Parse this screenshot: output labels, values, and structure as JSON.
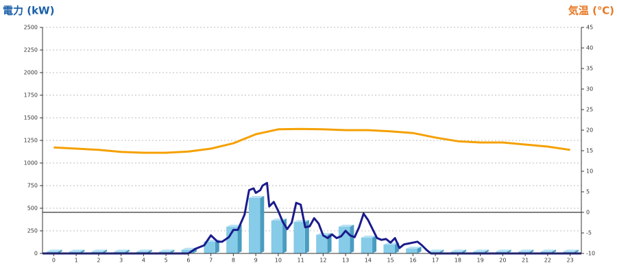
{
  "chart_data": {
    "type": "combo",
    "y_title": "電力 (kW)",
    "y2_title": "気温 (℃)",
    "categories": [
      0,
      1,
      2,
      3,
      4,
      5,
      6,
      7,
      8,
      9,
      10,
      11,
      12,
      13,
      14,
      15,
      16,
      17,
      18,
      19,
      20,
      21,
      22,
      23
    ],
    "xlim": [
      -0.5,
      23.5
    ],
    "ylim": [
      0,
      2500
    ],
    "yticks": [
      0,
      250,
      500,
      750,
      1000,
      1250,
      1500,
      1750,
      2000,
      2250,
      2500
    ],
    "y2lim": [
      -10,
      45
    ],
    "y2ticks": [
      -10,
      -5,
      0,
      5,
      10,
      15,
      20,
      25,
      30,
      35,
      40,
      45
    ],
    "grid": true,
    "y2_zero_line": true,
    "series": [
      {
        "type": "bar",
        "color": "#86cbe8",
        "values": [
          20,
          20,
          20,
          20,
          20,
          20,
          40,
          130,
          295,
          614,
          364,
          348,
          205,
          295,
          174,
          98,
          53,
          20,
          20,
          20,
          20,
          20,
          20,
          20
        ]
      },
      {
        "type": "line",
        "color": "#1a1a8c",
        "x": [
          -0.5,
          0,
          1,
          2,
          3,
          4,
          5,
          6,
          6.3,
          6.7,
          7,
          7.3,
          7.5,
          7.8,
          8,
          8.2,
          8.5,
          8.7,
          8.9,
          9,
          9.2,
          9.3,
          9.5,
          9.6,
          9.8,
          10,
          10.2,
          10.4,
          10.6,
          10.8,
          11,
          11.2,
          11.4,
          11.6,
          11.8,
          12,
          12.2,
          12.4,
          12.6,
          12.8,
          13,
          13.2,
          13.4,
          13.6,
          13.8,
          14,
          14.2,
          14.4,
          14.6,
          14.8,
          15,
          15.2,
          15.4,
          15.6,
          15.8,
          16,
          16.2,
          16.4,
          16.6,
          16.8,
          17,
          18,
          19,
          20,
          21,
          22,
          23,
          23.5
        ],
        "values": [
          0,
          0,
          0,
          0,
          0,
          0,
          0,
          0,
          50,
          90,
          200,
          130,
          130,
          180,
          260,
          260,
          430,
          700,
          720,
          670,
          700,
          750,
          780,
          520,
          570,
          470,
          350,
          270,
          340,
          560,
          540,
          290,
          300,
          390,
          330,
          200,
          170,
          210,
          170,
          190,
          250,
          200,
          180,
          290,
          440,
          370,
          270,
          170,
          150,
          160,
          120,
          170,
          60,
          100,
          110,
          120,
          130,
          90,
          40,
          0,
          0,
          0,
          0,
          0,
          0,
          0,
          0,
          0
        ]
      },
      {
        "type": "line",
        "axis": "y2",
        "color": "#f5a000",
        "values": [
          15.8,
          15.5,
          15.2,
          14.7,
          14.5,
          14.5,
          14.8,
          15.5,
          16.8,
          19,
          20.2,
          20.3,
          20.2,
          20,
          20,
          19.7,
          19.3,
          18.2,
          17.3,
          17,
          17,
          16.5,
          16,
          15.2
        ]
      }
    ]
  }
}
